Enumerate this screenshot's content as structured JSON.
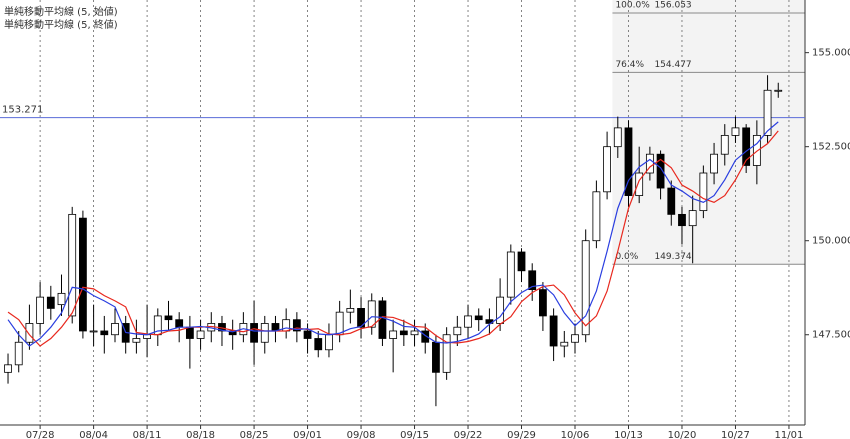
{
  "chart_data": {
    "type": "candlestick",
    "x": [
      0,
      1,
      2,
      3,
      4,
      5,
      6,
      7,
      8,
      9,
      10,
      11,
      12,
      13,
      14,
      15,
      16,
      17,
      18,
      19,
      20,
      21,
      22,
      23,
      24,
      25,
      26,
      27,
      28,
      29,
      30,
      31,
      32,
      33,
      34,
      35,
      36,
      37,
      38,
      39,
      40,
      41,
      42,
      43,
      44,
      45,
      46,
      47,
      48,
      49,
      50,
      51,
      52,
      53,
      54,
      55,
      56,
      57,
      58,
      59,
      60,
      61,
      62,
      63,
      64,
      65,
      66,
      67,
      68,
      69,
      70,
      71,
      72
    ],
    "open": [
      146.5,
      146.7,
      147.3,
      147.8,
      148.5,
      148.3,
      148.0,
      150.6,
      147.6,
      147.6,
      147.5,
      147.8,
      147.3,
      147.4,
      147.5,
      148.0,
      147.9,
      147.7,
      147.4,
      147.6,
      147.8,
      147.6,
      147.5,
      147.8,
      147.3,
      147.8,
      147.6,
      147.9,
      147.6,
      147.4,
      147.1,
      147.5,
      148.1,
      148.2,
      147.7,
      148.4,
      147.4,
      147.6,
      147.5,
      147.6,
      147.3,
      146.5,
      147.5,
      147.7,
      148.0,
      147.9,
      147.8,
      148.5,
      149.7,
      149.2,
      148.7,
      148.0,
      147.2,
      147.3,
      147.5,
      150.0,
      151.3,
      152.5,
      153.0,
      151.2,
      151.8,
      152.3,
      151.4,
      150.7,
      150.4,
      150.8,
      151.8,
      152.3,
      152.8,
      153.0,
      152.0,
      152.8,
      154.0
    ],
    "high": [
      147.0,
      147.6,
      148.3,
      148.9,
      148.8,
      149.1,
      150.9,
      150.8,
      148.3,
      148.0,
      148.2,
      148.0,
      147.9,
      148.3,
      148.2,
      148.4,
      148.1,
      148.0,
      147.9,
      148.1,
      148.0,
      147.9,
      148.1,
      148.4,
      148.0,
      148.0,
      148.2,
      148.1,
      147.8,
      147.6,
      147.8,
      148.4,
      148.7,
      148.5,
      148.6,
      148.5,
      147.9,
      147.9,
      147.9,
      147.8,
      147.5,
      147.7,
      148.0,
      148.3,
      148.2,
      148.2,
      149.0,
      149.9,
      149.8,
      149.4,
      148.9,
      148.2,
      147.6,
      147.8,
      150.3,
      151.6,
      152.9,
      153.3,
      153.2,
      152.5,
      152.5,
      152.4,
      151.6,
      150.9,
      151.2,
      152.0,
      152.6,
      153.1,
      153.3,
      153.1,
      153.2,
      154.4,
      154.2
    ],
    "low": [
      146.2,
      146.5,
      147.1,
      147.5,
      147.9,
      148.0,
      147.8,
      147.4,
      147.2,
      147.0,
      147.3,
      147.0,
      147.0,
      146.9,
      147.2,
      147.6,
      147.3,
      146.6,
      147.1,
      147.3,
      147.2,
      147.1,
      147.3,
      146.7,
      147.0,
      147.3,
      147.4,
      147.3,
      147.0,
      146.9,
      146.9,
      147.3,
      147.8,
      147.4,
      147.5,
      147.2,
      146.5,
      147.2,
      147.2,
      147.0,
      145.6,
      146.3,
      147.2,
      147.4,
      147.6,
      147.5,
      147.6,
      148.3,
      148.9,
      148.4,
      147.6,
      146.8,
      146.9,
      147.0,
      147.3,
      149.8,
      151.1,
      152.2,
      150.9,
      151.0,
      151.6,
      151.1,
      150.4,
      149.9,
      149.4,
      150.6,
      151.5,
      152.0,
      152.6,
      151.8,
      151.5,
      152.6,
      153.8
    ],
    "close": [
      146.7,
      147.3,
      147.8,
      148.5,
      148.2,
      148.6,
      150.7,
      147.6,
      147.6,
      147.5,
      147.8,
      147.3,
      147.4,
      147.5,
      148.0,
      147.9,
      147.7,
      147.4,
      147.6,
      147.8,
      147.6,
      147.5,
      147.8,
      147.3,
      147.8,
      147.6,
      147.9,
      147.6,
      147.4,
      147.1,
      147.5,
      148.1,
      148.2,
      147.7,
      148.4,
      147.4,
      147.6,
      147.5,
      147.6,
      147.3,
      146.5,
      147.5,
      147.7,
      148.0,
      147.9,
      147.8,
      148.5,
      149.7,
      149.2,
      148.7,
      148.0,
      147.2,
      147.3,
      147.5,
      150.0,
      151.3,
      152.5,
      153.0,
      151.2,
      151.8,
      152.3,
      151.4,
      150.7,
      150.4,
      150.8,
      151.8,
      152.3,
      152.8,
      153.0,
      152.0,
      152.8,
      154.0,
      154.0
    ],
    "up_color": "#ffffff",
    "down_color": "#000000",
    "series": [
      {
        "name": "単純移動平均線 (5, 始値)",
        "color": "#e8281e",
        "values": [
          148.1,
          147.9,
          147.5,
          147.2,
          147.4,
          147.7,
          148.08,
          148.76,
          148.72,
          148.54,
          148.4,
          148.24,
          147.56,
          147.52,
          147.5,
          147.6,
          147.62,
          147.7,
          147.7,
          147.72,
          147.68,
          147.62,
          147.58,
          147.66,
          147.6,
          147.6,
          147.6,
          147.68,
          147.64,
          147.66,
          147.52,
          147.5,
          147.54,
          147.66,
          147.72,
          147.98,
          147.96,
          147.86,
          147.72,
          147.7,
          147.48,
          147.3,
          147.28,
          147.32,
          147.4,
          147.52,
          147.78,
          147.98,
          148.38,
          148.62,
          148.78,
          148.82,
          148.56,
          148.08,
          147.74,
          148.0,
          148.66,
          149.72,
          150.86,
          151.6,
          151.96,
          152.16,
          151.94,
          151.48,
          151.32,
          151.12,
          151.02,
          151.2,
          151.62,
          152.14,
          152.38,
          152.58,
          152.92
        ]
      },
      {
        "name": "単純移動平均線 (5, 終値)",
        "color": "#2a3ee0",
        "values": [
          147.9,
          147.5,
          147.2,
          147.4,
          147.7,
          148.08,
          148.76,
          148.72,
          148.54,
          148.4,
          148.24,
          147.56,
          147.52,
          147.5,
          147.6,
          147.62,
          147.7,
          147.7,
          147.72,
          147.68,
          147.62,
          147.58,
          147.66,
          147.6,
          147.6,
          147.6,
          147.68,
          147.64,
          147.66,
          147.52,
          147.5,
          147.54,
          147.66,
          147.72,
          147.98,
          147.96,
          147.86,
          147.72,
          147.7,
          147.48,
          147.3,
          147.28,
          147.32,
          147.4,
          147.52,
          147.78,
          147.98,
          148.38,
          148.62,
          148.78,
          148.82,
          148.56,
          148.08,
          147.74,
          148.0,
          148.66,
          149.72,
          150.86,
          151.6,
          151.96,
          152.16,
          151.94,
          151.48,
          151.32,
          151.12,
          151.02,
          151.2,
          151.62,
          152.14,
          152.38,
          152.58,
          152.92,
          153.16
        ]
      }
    ],
    "xlim": [
      -0.75,
      74.5
    ],
    "ylim": [
      145.1,
      156.4
    ],
    "yticks": [
      {
        "value": 147.5,
        "label": "147.500"
      },
      {
        "value": 150,
        "label": "150.000"
      },
      {
        "value": 152.5,
        "label": "152.500"
      },
      {
        "value": 155,
        "label": "155.000"
      }
    ],
    "xticks": [
      {
        "value": 3,
        "label": "07/28"
      },
      {
        "value": 8,
        "label": "08/04"
      },
      {
        "value": 13,
        "label": "08/11"
      },
      {
        "value": 18,
        "label": "08/18"
      },
      {
        "value": 23,
        "label": "08/25"
      },
      {
        "value": 28,
        "label": "09/01"
      },
      {
        "value": 33,
        "label": "09/08"
      },
      {
        "value": 38,
        "label": "09/15"
      },
      {
        "value": 43,
        "label": "09/22"
      },
      {
        "value": 48,
        "label": "09/29"
      },
      {
        "value": 53,
        "label": "10/06"
      },
      {
        "value": 58,
        "label": "10/13"
      },
      {
        "value": 63,
        "label": "10/20"
      },
      {
        "value": 68,
        "label": "10/27"
      },
      {
        "value": 73,
        "label": "11/01"
      }
    ],
    "grid": true,
    "hline": {
      "value": 153.271,
      "color": "#5a6bd8"
    },
    "fib": {
      "x_start": 56.5,
      "fill": "#f3f3f3",
      "levels": [
        {
          "label": "100.0%",
          "value": 156.053
        },
        {
          "label": "76.4%",
          "value": 154.477
        },
        {
          "label": "0.0%",
          "value": 149.374
        }
      ]
    }
  }
}
